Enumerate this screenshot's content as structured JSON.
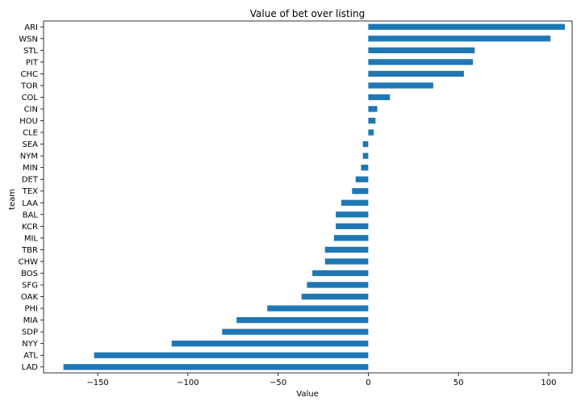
{
  "chart_data": {
    "type": "bar",
    "orientation": "horizontal",
    "title": "Value of bet over listing",
    "xlabel": "Value",
    "ylabel": "team",
    "xlim": [
      -180,
      113
    ],
    "xticks": [
      -150,
      -100,
      -50,
      0,
      50,
      100
    ],
    "xtick_labels": [
      "−150",
      "−100",
      "−50",
      "0",
      "50",
      "100"
    ],
    "grid": false,
    "bar_color": "#1f77b4",
    "categories": [
      "ARI",
      "WSN",
      "STL",
      "PIT",
      "CHC",
      "TOR",
      "COL",
      "CIN",
      "HOU",
      "CLE",
      "SEA",
      "NYM",
      "MIN",
      "DET",
      "TEX",
      "LAA",
      "BAL",
      "KCR",
      "MIL",
      "TBR",
      "CHW",
      "BOS",
      "SFG",
      "OAK",
      "PHI",
      "MIA",
      "SDP",
      "NYY",
      "ATL",
      "LAD"
    ],
    "values": [
      109,
      101,
      59,
      58,
      53,
      36,
      12,
      5,
      4,
      3,
      -3,
      -3,
      -4,
      -7,
      -9,
      -15,
      -18,
      -18,
      -19,
      -24,
      -24,
      -31,
      -34,
      -37,
      -56,
      -73,
      -81,
      -109,
      -152,
      -169
    ]
  }
}
